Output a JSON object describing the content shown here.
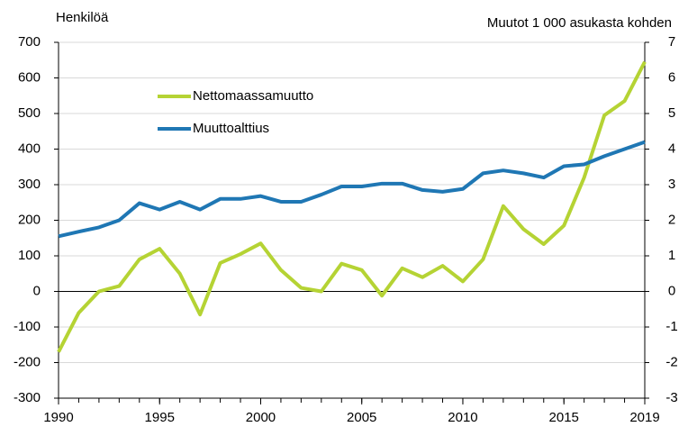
{
  "chart_data": {
    "type": "line",
    "y_label": "Henkilöä",
    "y2_label": "Muutot 1 000 asukasta kohden",
    "x": [
      1990,
      1991,
      1992,
      1993,
      1994,
      1995,
      1996,
      1997,
      1998,
      1999,
      2000,
      2001,
      2002,
      2003,
      2004,
      2005,
      2006,
      2007,
      2008,
      2009,
      2010,
      2011,
      2012,
      2013,
      2014,
      2015,
      2016,
      2017,
      2018,
      2019
    ],
    "xlim": [
      1990,
      2019
    ],
    "xticks": [
      1990,
      1995,
      2000,
      2005,
      2010,
      2015,
      2019
    ],
    "ylim": [
      -300,
      700
    ],
    "yticks": [
      -300,
      -200,
      -100,
      0,
      100,
      200,
      300,
      400,
      500,
      600,
      700
    ],
    "y2lim": [
      -3,
      7
    ],
    "y2ticks": [
      -3,
      -2,
      -1,
      0,
      1,
      2,
      3,
      4,
      5,
      6,
      7
    ],
    "grid": true,
    "series": [
      {
        "name": "Nettomaassamuutto",
        "color": "#b5d334",
        "values": [
          -170,
          -60,
          0,
          15,
          90,
          120,
          50,
          -65,
          80,
          105,
          135,
          60,
          10,
          0,
          78,
          60,
          -12,
          65,
          40,
          72,
          28,
          90,
          240,
          175,
          133,
          185,
          320,
          495,
          535,
          645
        ]
      },
      {
        "name": "Muuttoalttius",
        "color": "#1f77b4",
        "axis": "y2",
        "values": [
          1.55,
          1.68,
          1.8,
          2.0,
          2.48,
          2.3,
          2.52,
          2.3,
          2.6,
          2.6,
          2.68,
          2.52,
          2.52,
          2.72,
          2.95,
          2.95,
          3.03,
          3.03,
          2.85,
          2.8,
          2.88,
          3.32,
          3.4,
          3.32,
          3.2,
          3.52,
          3.57,
          3.8,
          4.0,
          4.2
        ]
      }
    ]
  }
}
